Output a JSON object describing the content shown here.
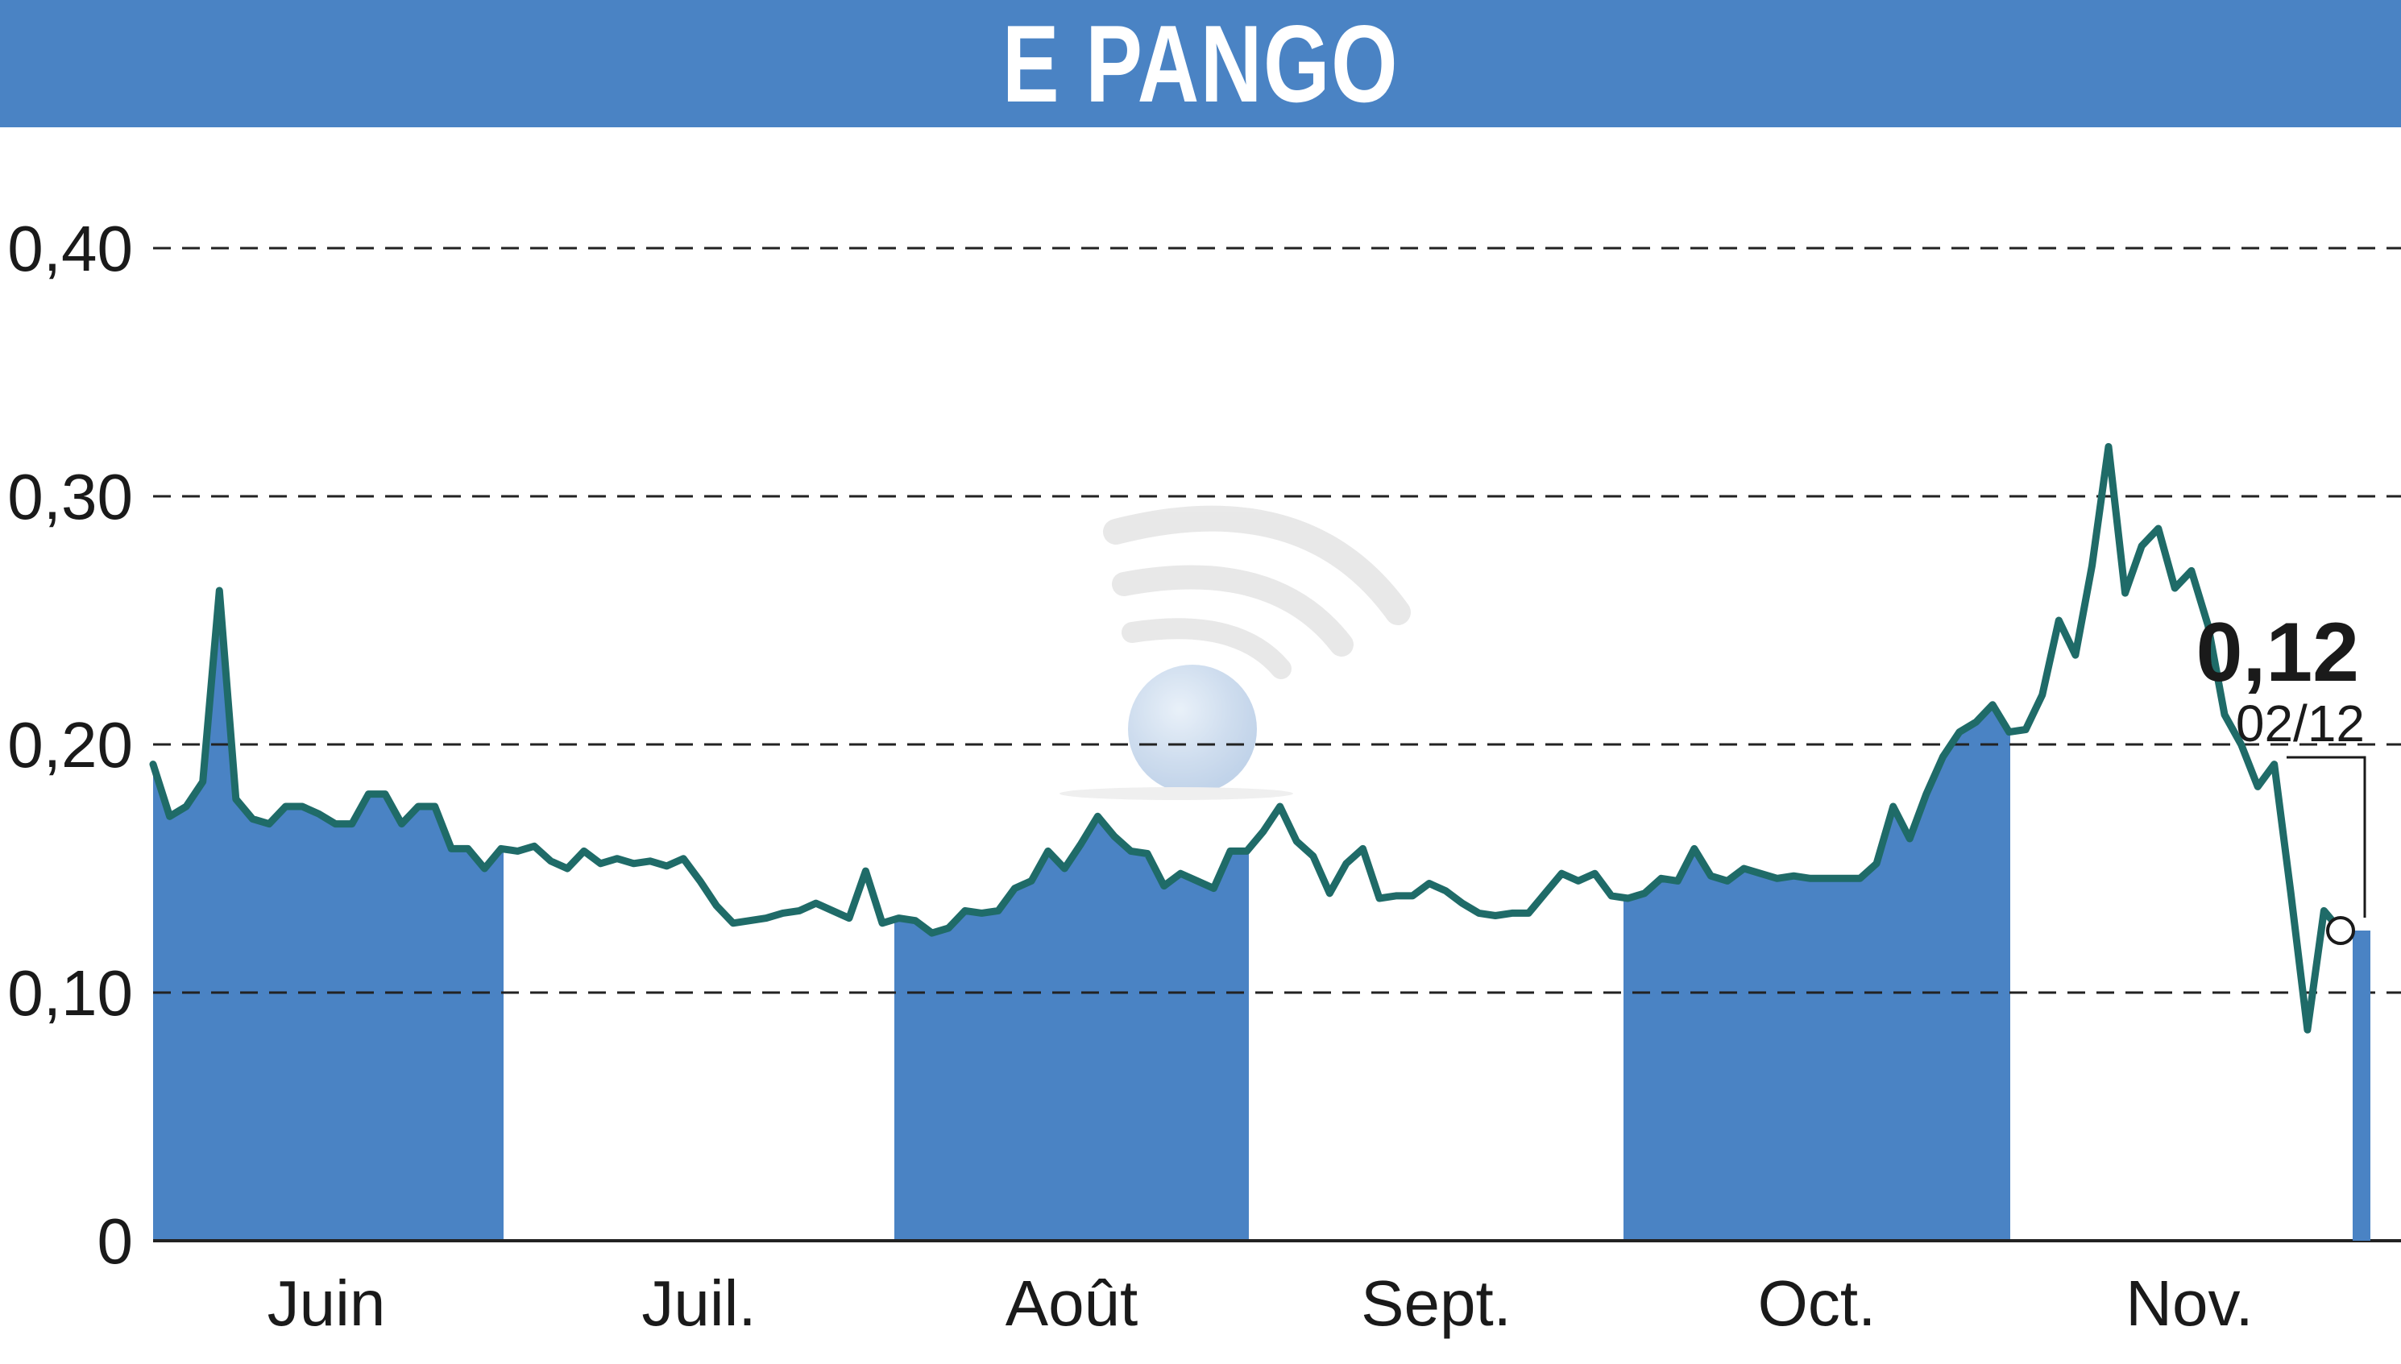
{
  "chart_data": {
    "type": "line",
    "title": "E PANGO",
    "ylim": [
      0,
      0.4
    ],
    "yticks": [
      {
        "value": 0.4,
        "label": "0,40"
      },
      {
        "value": 0.3,
        "label": "0,30"
      },
      {
        "value": 0.2,
        "label": "0,20"
      },
      {
        "value": 0.1,
        "label": "0,10"
      },
      {
        "value": 0,
        "label": "0"
      }
    ],
    "grid": "dashed horizontal",
    "months": [
      "Juin",
      "Juil.",
      "Août",
      "Sept.",
      "Oct.",
      "Nov."
    ],
    "shaded_months": [
      "Juin",
      "Août",
      "Oct."
    ],
    "series": [
      {
        "values": [
          0.192,
          0.171,
          0.175,
          0.185,
          0.262,
          0.178,
          0.17,
          0.168,
          0.175,
          0.175,
          0.172,
          0.168,
          0.168,
          0.18,
          0.18,
          0.168,
          0.175,
          0.175,
          0.158,
          0.158,
          0.15,
          0.158,
          0.157,
          0.159,
          0.153,
          0.15,
          0.157,
          0.152,
          0.154,
          0.152,
          0.153,
          0.151,
          0.154,
          0.145,
          0.135,
          0.128,
          0.129,
          0.13,
          0.132,
          0.133,
          0.136,
          0.133,
          0.13,
          0.149,
          0.128,
          0.13,
          0.129,
          0.124,
          0.126,
          0.133,
          0.132,
          0.133,
          0.142,
          0.145,
          0.157,
          0.15,
          0.16,
          0.171,
          0.163,
          0.157,
          0.156,
          0.143,
          0.148,
          0.145,
          0.142,
          0.157,
          0.157,
          0.165,
          0.175,
          0.161,
          0.155,
          0.14,
          0.152,
          0.158,
          0.138,
          0.139,
          0.139,
          0.144,
          0.141,
          0.136,
          0.132,
          0.131,
          0.132,
          0.132,
          0.14,
          0.148,
          0.145,
          0.148,
          0.139,
          0.138,
          0.14,
          0.146,
          0.145,
          0.158,
          0.147,
          0.145,
          0.15,
          0.148,
          0.146,
          0.147,
          0.146,
          0.146,
          0.146,
          0.146,
          0.152,
          0.175,
          0.162,
          0.18,
          0.195,
          0.205,
          0.209,
          0.216,
          0.205,
          0.206,
          0.22,
          0.25,
          0.236,
          0.272,
          0.32,
          0.261,
          0.28,
          0.287,
          0.263,
          0.27,
          0.248,
          0.212,
          0.2,
          0.183,
          0.192,
          0.14,
          0.085,
          0.133,
          0.125
        ],
        "line_color": "#1f6b68",
        "fill_color": "#4a83c4"
      }
    ],
    "last": {
      "value_label": "0,12",
      "date_label": "02/12"
    }
  }
}
